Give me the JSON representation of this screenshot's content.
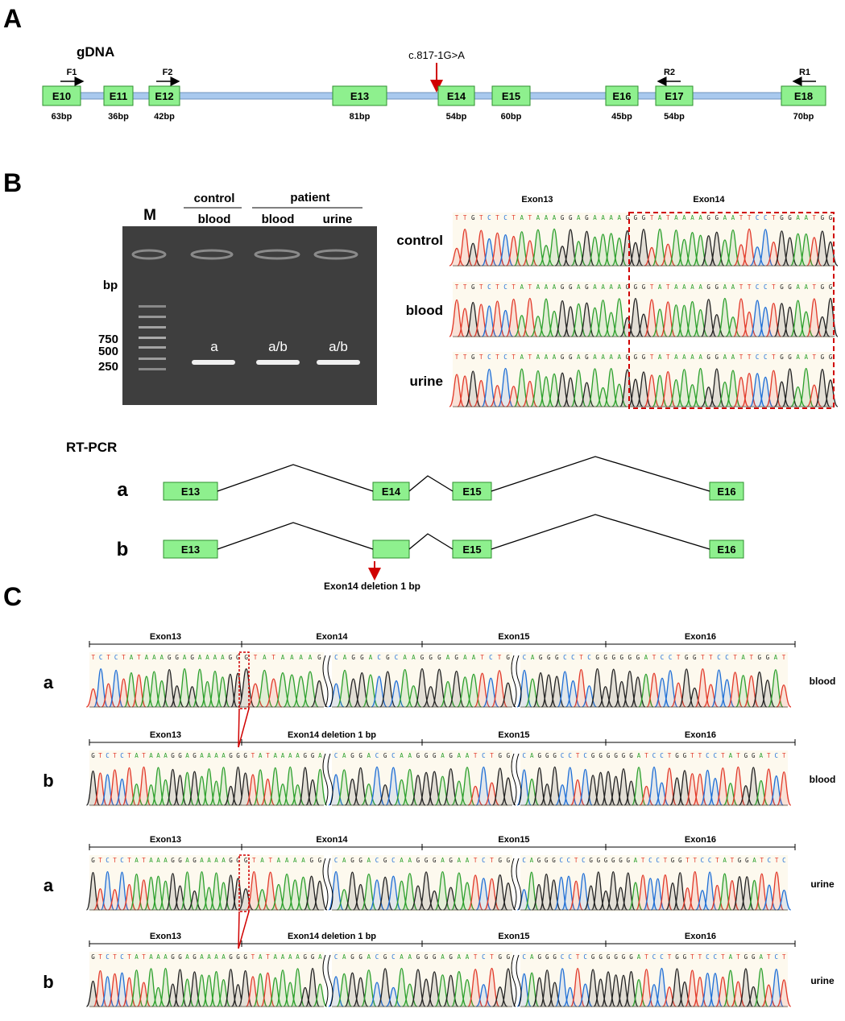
{
  "panel_a": {
    "letter": "A",
    "title": "gDNA",
    "mutation": "c.817-1G>A",
    "exons": [
      {
        "label": "E10",
        "size": "63bp"
      },
      {
        "label": "E11",
        "size": "36bp"
      },
      {
        "label": "E12",
        "size": "42bp"
      },
      {
        "label": "E13",
        "size": "81bp"
      },
      {
        "label": "E14",
        "size": "54bp"
      },
      {
        "label": "E15",
        "size": "60bp"
      },
      {
        "label": "E16",
        "size": "45bp"
      },
      {
        "label": "E17",
        "size": "54bp"
      },
      {
        "label": "E18",
        "size": "70bp"
      }
    ],
    "primers": [
      "F1",
      "F2",
      "R2",
      "R1"
    ],
    "colors": {
      "exon_fill": "#8ef08e",
      "exon_stroke": "#2f8f2f",
      "intron": "#a9c9ee",
      "arrow": "#c00000"
    }
  },
  "panel_b": {
    "letter": "B",
    "gel": {
      "marker": "M",
      "group_control": "control",
      "group_patient": "patient",
      "lanes": [
        "blood",
        "blood",
        "urine"
      ],
      "bp_label": "bp",
      "ladder": [
        "750",
        "500",
        "250"
      ],
      "band_labels": [
        "a",
        "a/b",
        "a/b"
      ]
    },
    "chrom": {
      "exon13": "Exon13",
      "exon14": "Exon14",
      "rows": [
        "control",
        "blood",
        "urine"
      ],
      "sequence": "TTGTCTCTATAAAGGAGAAAAGGGTATAAAAGGAATTCCTGGAATGG"
    }
  },
  "rtpcr": {
    "title": "RT-PCR",
    "a_label": "a",
    "b_label": "b",
    "exons_a": [
      "E13",
      "E14",
      "E15",
      "E16"
    ],
    "exons_b": [
      "E13",
      "",
      "E15",
      "E16"
    ],
    "deletion_note": "Exon14 deletion 1 bp"
  },
  "panel_c": {
    "letter": "C",
    "rows": [
      {
        "label": "a",
        "tissue": "blood",
        "headers": [
          "Exon13",
          "Exon14",
          "Exon15",
          "Exon16"
        ],
        "segments": [
          "TCTCTATAAAGGAGAAAAGG",
          "GTATAAAAG",
          "CAGGACGCAAGGGAGAATCTG",
          "CAGGGCCTCGGGGGGATCCTGGTTCCTATGGAT"
        ]
      },
      {
        "label": "b",
        "tissue": "blood",
        "headers": [
          "Exon13",
          "Exon14 deletion 1 bp",
          "Exon15",
          "Exon16"
        ],
        "segments": [
          "GTCTCTATAAAGGAGAAAAGG",
          "GTATAAAAGGA",
          "CAGGACGCAAGGGAGAATCTGG",
          "CAGGGCCTCGGGGGGATCCTGGTTCCTATGGATCT"
        ]
      },
      {
        "label": "a",
        "tissue": "urine",
        "headers": [
          "Exon13",
          "Exon14",
          "Exon15",
          "Exon16"
        ],
        "segments": [
          "GTCTCTATAAAGGAGAAAAGG",
          "GTATAAAAGG",
          "CAGGACGCAAGGGAGAATCTGG",
          "CAGGGCCTCGGGGGGATCCTGGTTCCTATGGATCTC"
        ]
      },
      {
        "label": "b",
        "tissue": "urine",
        "headers": [
          "Exon13",
          "Exon14 deletion 1 bp",
          "Exon15",
          "Exon16"
        ],
        "segments": [
          "GTCTCTATAAAGGAGAAAAGG",
          "GTATAAAAGGA",
          "CAGGACGCAAGGGAGAATCTGG",
          "CAGGGCCTCGGGGGGATCCTGGTTCCTATGGATCT"
        ]
      }
    ]
  },
  "base_colors": {
    "A": "#2ca02c",
    "C": "#1f6fd6",
    "G": "#222222",
    "T": "#e23a2a"
  }
}
